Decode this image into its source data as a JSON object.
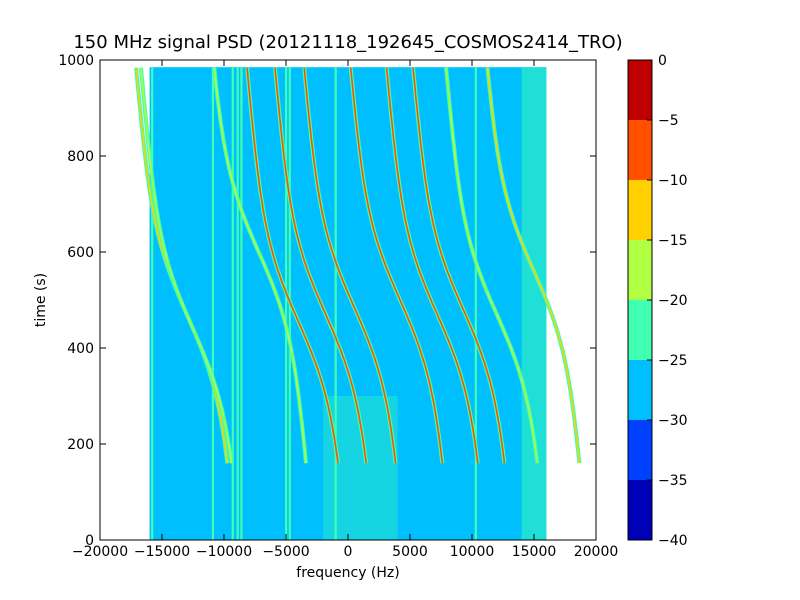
{
  "chart_data": {
    "type": "heatmap",
    "title": "150 MHz signal PSD (20121118_192645_COSMOS2414_TRO)",
    "xlabel": "frequency (Hz)",
    "ylabel": "time (s)",
    "xlim": [
      -20000,
      20000
    ],
    "ylim": [
      0,
      1000
    ],
    "x_ticks": [
      -20000,
      -15000,
      -10000,
      -5000,
      0,
      5000,
      10000,
      15000,
      20000
    ],
    "y_ticks": [
      0,
      200,
      400,
      600,
      800,
      1000
    ],
    "data_extent": {
      "freq_min": -16000,
      "freq_max": 16000,
      "time_min": 0,
      "time_max": 985
    },
    "colorbar": {
      "levels": [
        -40,
        -35,
        -30,
        -25,
        -20,
        -15,
        -10,
        -5,
        0
      ],
      "tick_labels": [
        "−40",
        "−35",
        "−30",
        "−25",
        "−20",
        "−15",
        "−10",
        "−5",
        "0"
      ],
      "colors": [
        "#0000b8",
        "#0040ff",
        "#00bfff",
        "#40ffb0",
        "#b0ff40",
        "#ffd000",
        "#ff5000",
        "#c00000"
      ]
    },
    "background_level_color": "#00bfff",
    "vertical_lines_hz": [
      -15800,
      -10900,
      -9300,
      -8900,
      -8600,
      -5000,
      -4700,
      -1000,
      10300
    ],
    "doppler_tracks": [
      {
        "center_time_s": 455,
        "freq_at_center_hz": -4000,
        "peak_level": "-10"
      },
      {
        "center_time_s": 470,
        "freq_at_center_hz": -1800,
        "peak_level": "-10"
      },
      {
        "center_time_s": 485,
        "freq_at_center_hz": 500,
        "peak_level": "-10"
      },
      {
        "center_time_s": 500,
        "freq_at_center_hz": 4200,
        "peak_level": "-10"
      },
      {
        "center_time_s": 470,
        "freq_at_center_hz": 7200,
        "peak_level": "-10"
      },
      {
        "center_time_s": 480,
        "freq_at_center_hz": 9300,
        "peak_level": "-10"
      },
      {
        "center_time_s": 470,
        "freq_at_center_hz": 12000,
        "peak_level": "-20"
      },
      {
        "center_time_s": 470,
        "freq_at_center_hz": -13000,
        "peak_level": "-15"
      },
      {
        "center_time_s": 440,
        "freq_at_center_hz": -12500,
        "peak_level": "-20"
      },
      {
        "center_time_s": 600,
        "freq_at_center_hz": -7200,
        "peak_level": "-20"
      },
      {
        "center_time_s": 560,
        "freq_at_center_hz": 15000,
        "peak_level": "-15"
      }
    ]
  }
}
